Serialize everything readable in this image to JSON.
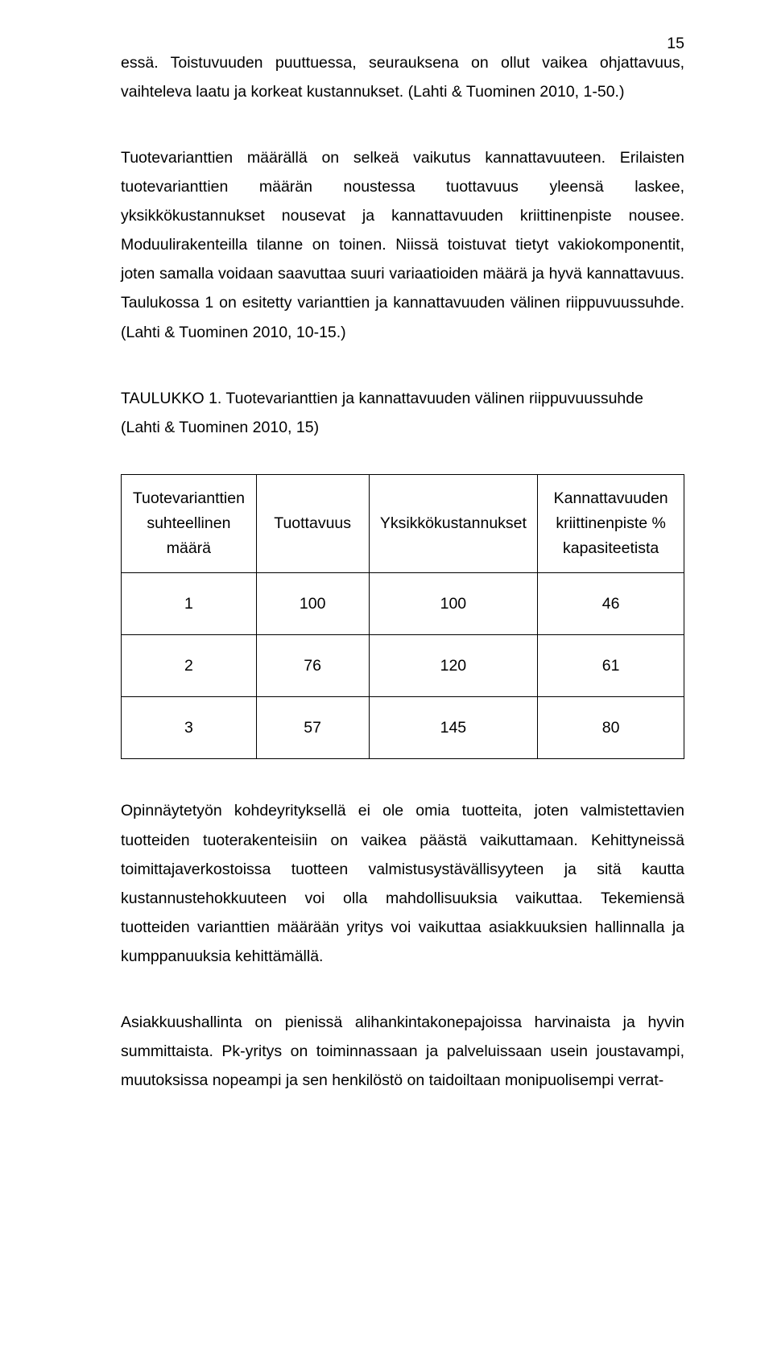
{
  "page_number": "15",
  "para1": "essä. Toistuvuuden puuttuessa, seurauksena on ollut vaikea ohjattavuus, vaihteleva laatu ja korkeat kustannukset. (Lahti & Tuominen 2010, 1-50.)",
  "para2": "Tuotevarianttien määrällä on selkeä vaikutus kannattavuuteen. Erilaisten tuotevarianttien määrän noustessa tuottavuus yleensä laskee, yksikkökustannukset nousevat ja kannattavuuden kriittinenpiste nousee. Moduulirakenteilla tilanne on toinen. Niissä toistuvat tietyt vakiokomponentit, joten samalla voidaan saavuttaa suuri variaatioiden määrä ja hyvä kannattavuus. Taulukossa 1 on esitetty varianttien ja kannattavuuden välinen riippuvuussuhde. (Lahti & Tuominen 2010, 10-15.)",
  "caption": "TAULUKKO 1. Tuotevarianttien ja kannattavuuden välinen riippuvuussuhde (Lahti & Tuominen 2010, 15)",
  "table": {
    "columns": [
      "Tuotevarianttien suhteellinen määrä",
      "Tuottavuus",
      "Yksikkökustannukset",
      "Kannattavuuden kriittinenpiste % kapasiteetista"
    ],
    "rows": [
      [
        "1",
        "100",
        "100",
        "46"
      ],
      [
        "2",
        "76",
        "120",
        "61"
      ],
      [
        "3",
        "57",
        "145",
        "80"
      ]
    ],
    "border_color": "#000000",
    "text_color": "#000000",
    "background_color": "#ffffff"
  },
  "para3": "Opinnäytetyön kohdeyrityksellä ei ole omia tuotteita, joten valmistettavien tuotteiden tuoterakenteisiin on vaikea päästä vaikuttamaan. Kehittyneissä toimittajaverkostoissa tuotteen valmistusystävällisyyteen ja sitä kautta kustannustehokkuuteen voi olla mahdollisuuksia vaikuttaa. Tekemiensä tuotteiden varianttien määrään yritys voi vaikuttaa asiakkuuksien hallinnalla ja kumppanuuksia kehittämällä.",
  "para4": "Asiakkuushallinta on pienissä alihankintakonepajoissa harvinaista ja hyvin summittaista. Pk-yritys on toiminnassaan ja palveluissaan usein joustavampi, muutoksissa nopeampi ja sen henkilöstö on taidoiltaan monipuolisempi verrat-"
}
